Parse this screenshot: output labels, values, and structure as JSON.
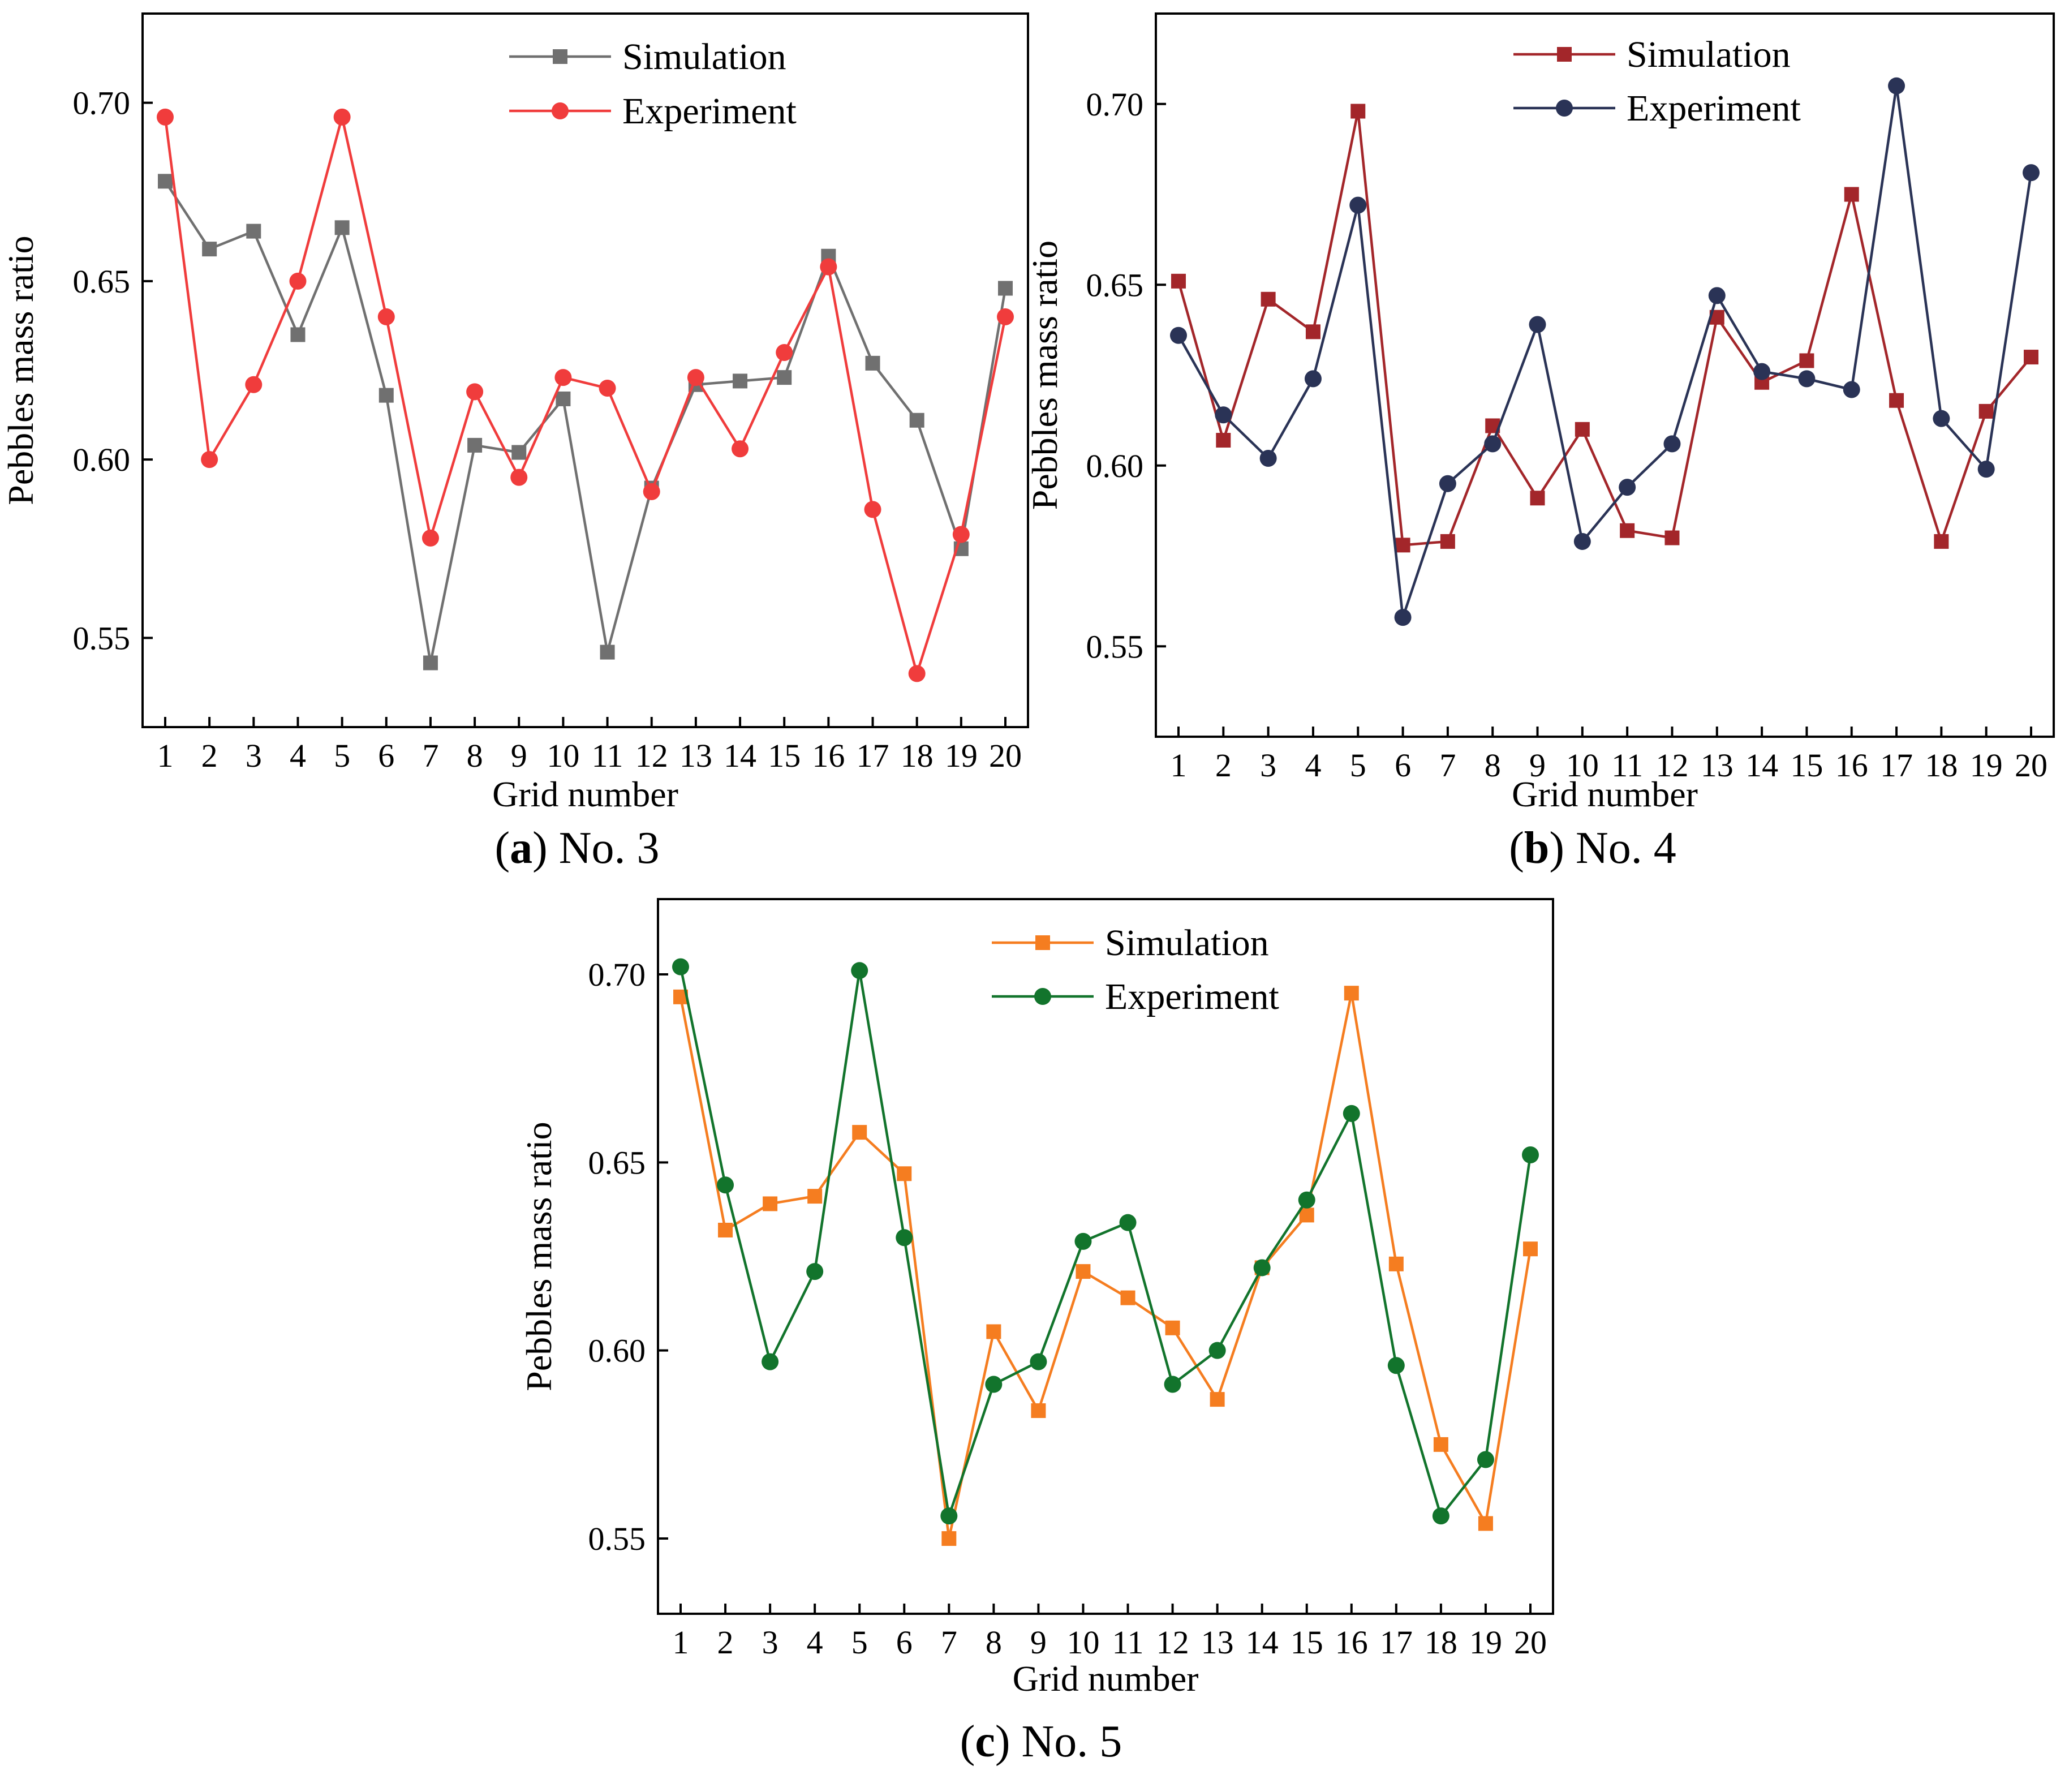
{
  "chart_data": [
    {
      "type": "line",
      "caption_letter": "a",
      "caption_text": "No. 3",
      "xlabel": "Grid number",
      "ylabel": "Pebbles mass ratio",
      "x": [
        1,
        2,
        3,
        4,
        5,
        6,
        7,
        8,
        9,
        10,
        11,
        12,
        13,
        14,
        15,
        16,
        17,
        18,
        19,
        20
      ],
      "x_tick_labels": [
        "1",
        "2",
        "3",
        "4",
        "5",
        "6",
        "7",
        "8",
        "9",
        "10",
        "11",
        "12",
        "13",
        "14",
        "15",
        "16",
        "17",
        "18",
        "19",
        "20"
      ],
      "ylim": [
        0.525,
        0.725
      ],
      "y_ticks": [
        0.55,
        0.6,
        0.65,
        0.7
      ],
      "y_tick_labels": [
        "0.55",
        "0.60",
        "0.65",
        "0.70"
      ],
      "legend_position": "top-center",
      "series": [
        {
          "name": "Simulation",
          "marker": "square",
          "color": "#707070",
          "values": [
            0.678,
            0.659,
            0.664,
            0.635,
            0.665,
            0.618,
            0.543,
            0.604,
            0.602,
            0.617,
            0.546,
            0.592,
            0.621,
            0.622,
            0.623,
            0.657,
            0.627,
            0.611,
            0.575,
            0.648
          ]
        },
        {
          "name": "Experiment",
          "marker": "circle",
          "color": "#f03c3c",
          "values": [
            0.696,
            0.6,
            0.621,
            0.65,
            0.696,
            0.64,
            0.578,
            0.619,
            0.595,
            0.623,
            0.62,
            0.591,
            0.623,
            0.603,
            0.63,
            0.654,
            0.586,
            0.54,
            0.579,
            0.64
          ]
        }
      ]
    },
    {
      "type": "line",
      "caption_letter": "b",
      "caption_text": "No. 4",
      "xlabel": "Grid number",
      "ylabel": "Pebbles mass ratio",
      "x": [
        1,
        2,
        3,
        4,
        5,
        6,
        7,
        8,
        9,
        10,
        11,
        12,
        13,
        14,
        15,
        16,
        17,
        18,
        19,
        20
      ],
      "x_tick_labels": [
        "1",
        "2",
        "3",
        "4",
        "5",
        "6",
        "7",
        "8",
        "9",
        "10",
        "11",
        "12",
        "13",
        "14",
        "15",
        "16",
        "17",
        "18",
        "19",
        "20"
      ],
      "ylim": [
        0.525,
        0.725
      ],
      "y_ticks": [
        0.55,
        0.6,
        0.65,
        0.7
      ],
      "y_tick_labels": [
        "0.55",
        "0.60",
        "0.65",
        "0.70"
      ],
      "legend_position": "top-center",
      "series": [
        {
          "name": "Simulation",
          "marker": "square",
          "color": "#a3262a",
          "values": [
            0.651,
            0.607,
            0.646,
            0.637,
            0.698,
            0.578,
            0.579,
            0.611,
            0.591,
            0.61,
            0.582,
            0.58,
            0.641,
            0.623,
            0.629,
            0.675,
            0.618,
            0.579,
            0.615,
            0.63
          ]
        },
        {
          "name": "Experiment",
          "marker": "circle",
          "color": "#2a3356",
          "values": [
            0.636,
            0.614,
            0.602,
            0.624,
            0.672,
            0.558,
            0.595,
            0.606,
            0.639,
            0.579,
            0.594,
            0.606,
            0.647,
            0.626,
            0.624,
            0.621,
            0.705,
            0.613,
            0.599,
            0.681
          ]
        }
      ]
    },
    {
      "type": "line",
      "caption_letter": "c",
      "caption_text": "No. 5",
      "xlabel": "Grid number",
      "ylabel": "Pebbles mass ratio",
      "x": [
        1,
        2,
        3,
        4,
        5,
        6,
        7,
        8,
        9,
        10,
        11,
        12,
        13,
        14,
        15,
        16,
        17,
        18,
        19,
        20
      ],
      "x_tick_labels": [
        "1",
        "2",
        "3",
        "4",
        "5",
        "6",
        "7",
        "8",
        "9",
        "10",
        "11",
        "12",
        "13",
        "14",
        "15",
        "16",
        "17",
        "18",
        "19",
        "20"
      ],
      "ylim": [
        0.53,
        0.72
      ],
      "y_ticks": [
        0.55,
        0.6,
        0.65,
        0.7
      ],
      "y_tick_labels": [
        "0.55",
        "0.60",
        "0.65",
        "0.70"
      ],
      "legend_position": "top-center",
      "series": [
        {
          "name": "Simulation",
          "marker": "square",
          "color": "#f57d20",
          "values": [
            0.694,
            0.632,
            0.639,
            0.641,
            0.658,
            0.647,
            0.55,
            0.605,
            0.584,
            0.621,
            0.614,
            0.606,
            0.587,
            0.622,
            0.636,
            0.695,
            0.623,
            0.575,
            0.554,
            0.627
          ]
        },
        {
          "name": "Experiment",
          "marker": "circle",
          "color": "#12742c",
          "values": [
            0.702,
            0.644,
            0.597,
            0.621,
            0.701,
            0.63,
            0.556,
            0.591,
            0.597,
            0.629,
            0.634,
            0.591,
            0.6,
            0.622,
            0.64,
            0.663,
            0.596,
            0.556,
            0.571,
            0.652
          ]
        }
      ]
    }
  ]
}
